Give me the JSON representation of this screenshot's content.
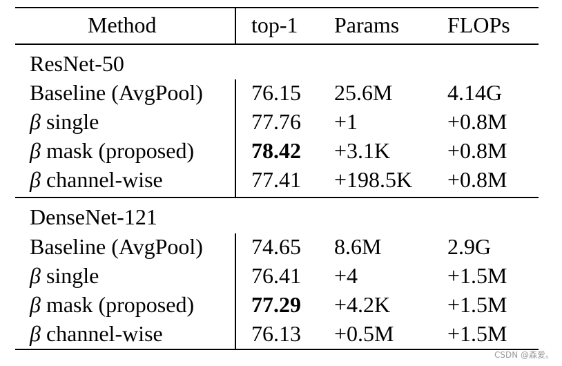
{
  "header": {
    "method": "Method",
    "top1": "top-1",
    "params": "Params",
    "flops": "FLOPs"
  },
  "groups": [
    {
      "name": "ResNet-50",
      "rows": [
        {
          "beta": "",
          "method": "Baseline (AvgPool)",
          "top1": "76.15",
          "params": "25.6M",
          "flops": "4.14G"
        },
        {
          "beta": "β",
          "method": "single",
          "top1": "77.76",
          "params": "+1",
          "flops": "+0.8M"
        },
        {
          "beta": "β",
          "method": "mask (proposed)",
          "top1": "78.42",
          "params": "+3.1K",
          "flops": "+0.8M"
        },
        {
          "beta": "β",
          "method": "channel-wise",
          "top1": "77.41",
          "params": "+198.5K",
          "flops": "+0.8M"
        }
      ]
    },
    {
      "name": "DenseNet-121",
      "rows": [
        {
          "beta": "",
          "method": "Baseline (AvgPool)",
          "top1": "74.65",
          "params": "8.6M",
          "flops": "2.9G"
        },
        {
          "beta": "β",
          "method": "single",
          "top1": "76.41",
          "params": "+4",
          "flops": "+1.5M"
        },
        {
          "beta": "β",
          "method": "mask (proposed)",
          "top1": "77.29",
          "params": "+4.2K",
          "flops": "+1.5M"
        },
        {
          "beta": "β",
          "method": "channel-wise",
          "top1": "76.13",
          "params": "+0.5M",
          "flops": "+1.5M"
        }
      ]
    }
  ],
  "watermark": "CSDN @森爱。"
}
